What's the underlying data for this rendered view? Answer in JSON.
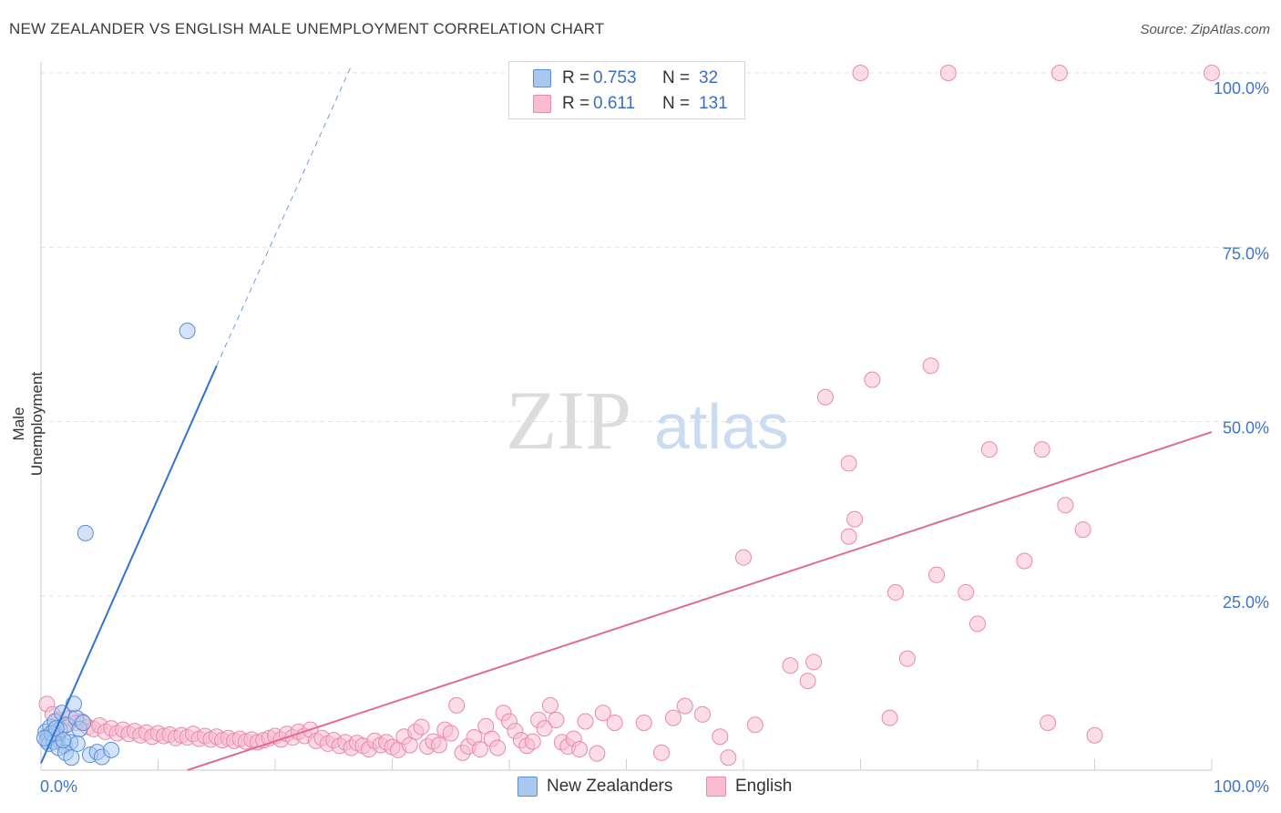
{
  "title": "NEW ZEALANDER VS ENGLISH MALE UNEMPLOYMENT CORRELATION CHART",
  "source": "Source: ZipAtlas.com",
  "watermark": {
    "zip": "ZIP",
    "atlas": "atlas"
  },
  "legend": {
    "r_label": "R =",
    "n_label": "N =",
    "series": [
      {
        "name": "New Zealanders",
        "r": "0.753",
        "n": "32",
        "color": "#a9c8f0",
        "stroke": "#5a8fd8"
      },
      {
        "name": "English",
        "r": "0.611",
        "n": "131",
        "color": "#f9bcd0",
        "stroke": "#e88aa8"
      }
    ]
  },
  "chart_data": {
    "type": "scatter",
    "xlabel": "",
    "ylabel": "Male Unemployment",
    "xlim": [
      0,
      100
    ],
    "ylim": [
      0,
      100
    ],
    "x_tick_labels": [
      "0.0%",
      "100.0%"
    ],
    "y_tick_labels": [
      "25.0%",
      "50.0%",
      "75.0%",
      "100.0%"
    ],
    "y_ticks": [
      25,
      50,
      75,
      100
    ],
    "grid": true,
    "series": [
      {
        "name": "New Zealanders",
        "color": "#a9c8f0",
        "stroke": "#5a8fd8",
        "line_color": "#2f74d0",
        "trend": {
          "x0": 0,
          "y0": 1,
          "x1": 15,
          "y1": 58,
          "dash_to_x": 26.5,
          "dash_to_y": 101
        },
        "points": [
          [
            0.4,
            5.5
          ],
          [
            0.6,
            4.8
          ],
          [
            0.8,
            6.2
          ],
          [
            0.5,
            4.2
          ],
          [
            1.0,
            5.0
          ],
          [
            1.2,
            7.0
          ],
          [
            1.4,
            4.5
          ],
          [
            0.7,
            3.8
          ],
          [
            1.6,
            5.8
          ],
          [
            1.8,
            8.2
          ],
          [
            2.0,
            3.5
          ],
          [
            2.2,
            6.5
          ],
          [
            1.1,
            4.1
          ],
          [
            0.9,
            5.3
          ],
          [
            1.5,
            3.2
          ],
          [
            2.5,
            4.0
          ],
          [
            3.0,
            7.5
          ],
          [
            2.8,
            9.5
          ],
          [
            3.3,
            5.9
          ],
          [
            2.1,
            2.5
          ],
          [
            2.6,
            1.8
          ],
          [
            3.1,
            3.8
          ],
          [
            3.6,
            6.8
          ],
          [
            4.2,
            2.2
          ],
          [
            4.8,
            2.6
          ],
          [
            5.2,
            1.9
          ],
          [
            6.0,
            2.9
          ],
          [
            3.8,
            34
          ],
          [
            12.5,
            63
          ],
          [
            1.3,
            6.0
          ],
          [
            0.3,
            4.6
          ],
          [
            1.9,
            4.3
          ]
        ]
      },
      {
        "name": "English",
        "color": "#f9bcd0",
        "stroke": "#e88aa8",
        "line_color": "#e26b93",
        "trend": {
          "x0": 12.5,
          "y0": 0,
          "x1": 100,
          "y1": 48.5
        },
        "points": [
          [
            0.5,
            9.5
          ],
          [
            1.0,
            8.0
          ],
          [
            1.5,
            7.2
          ],
          [
            2.0,
            6.5
          ],
          [
            2.5,
            7.5
          ],
          [
            3.0,
            6.8
          ],
          [
            3.5,
            7.0
          ],
          [
            4.0,
            6.2
          ],
          [
            4.5,
            5.9
          ],
          [
            5.0,
            6.4
          ],
          [
            5.5,
            5.5
          ],
          [
            6.0,
            6.0
          ],
          [
            6.5,
            5.3
          ],
          [
            7.0,
            5.8
          ],
          [
            7.5,
            5.2
          ],
          [
            8.0,
            5.6
          ],
          [
            8.5,
            5.0
          ],
          [
            9.0,
            5.4
          ],
          [
            9.5,
            4.8
          ],
          [
            10.0,
            5.3
          ],
          [
            10.5,
            4.9
          ],
          [
            11.0,
            5.1
          ],
          [
            11.5,
            4.6
          ],
          [
            12.0,
            5.0
          ],
          [
            12.5,
            4.7
          ],
          [
            13.0,
            5.2
          ],
          [
            13.5,
            4.5
          ],
          [
            14.0,
            4.9
          ],
          [
            14.5,
            4.4
          ],
          [
            15.0,
            4.8
          ],
          [
            15.5,
            4.3
          ],
          [
            16.0,
            4.6
          ],
          [
            16.5,
            4.2
          ],
          [
            17.0,
            4.5
          ],
          [
            17.5,
            4.1
          ],
          [
            18.0,
            4.4
          ],
          [
            18.5,
            4.0
          ],
          [
            19.0,
            4.3
          ],
          [
            19.5,
            4.6
          ],
          [
            20.0,
            4.9
          ],
          [
            20.5,
            4.4
          ],
          [
            21.0,
            5.2
          ],
          [
            21.5,
            4.7
          ],
          [
            22.0,
            5.5
          ],
          [
            22.5,
            4.9
          ],
          [
            23.0,
            5.8
          ],
          [
            23.5,
            4.2
          ],
          [
            24.0,
            4.6
          ],
          [
            24.5,
            3.8
          ],
          [
            25.0,
            4.3
          ],
          [
            25.5,
            3.5
          ],
          [
            26.0,
            4.0
          ],
          [
            26.5,
            3.2
          ],
          [
            27.0,
            3.9
          ],
          [
            27.5,
            3.5
          ],
          [
            28.0,
            3.0
          ],
          [
            28.5,
            4.2
          ],
          [
            29.0,
            3.6
          ],
          [
            29.5,
            4.0
          ],
          [
            30.0,
            3.3
          ],
          [
            30.5,
            2.9
          ],
          [
            31.0,
            4.8
          ],
          [
            31.5,
            3.6
          ],
          [
            32.0,
            5.5
          ],
          [
            32.5,
            6.2
          ],
          [
            33.0,
            3.4
          ],
          [
            33.5,
            4.1
          ],
          [
            34.0,
            3.6
          ],
          [
            34.5,
            5.8
          ],
          [
            35.0,
            5.3
          ],
          [
            35.5,
            9.3
          ],
          [
            36.0,
            2.5
          ],
          [
            36.5,
            3.4
          ],
          [
            37.0,
            4.7
          ],
          [
            37.5,
            3.0
          ],
          [
            38.0,
            6.3
          ],
          [
            38.5,
            4.5
          ],
          [
            39.0,
            3.2
          ],
          [
            39.5,
            8.2
          ],
          [
            40.0,
            7.0
          ],
          [
            40.5,
            5.6
          ],
          [
            41.0,
            4.3
          ],
          [
            41.5,
            3.5
          ],
          [
            42.0,
            4.1
          ],
          [
            42.5,
            7.2
          ],
          [
            43.0,
            6.0
          ],
          [
            43.5,
            9.3
          ],
          [
            44.0,
            7.2
          ],
          [
            44.5,
            4.0
          ],
          [
            45.0,
            3.4
          ],
          [
            45.5,
            4.5
          ],
          [
            46.0,
            3.0
          ],
          [
            46.5,
            7.0
          ],
          [
            47.5,
            2.4
          ],
          [
            48.0,
            8.2
          ],
          [
            49.0,
            6.8
          ],
          [
            53.0,
            2.5
          ],
          [
            54.0,
            7.5
          ],
          [
            55.0,
            9.2
          ],
          [
            58.0,
            4.8
          ],
          [
            58.7,
            1.8
          ],
          [
            60.0,
            30.5
          ],
          [
            64.0,
            15.0
          ],
          [
            65.5,
            12.8
          ],
          [
            66.0,
            15.5
          ],
          [
            67.0,
            53.5
          ],
          [
            69.0,
            44
          ],
          [
            69.5,
            36
          ],
          [
            69.0,
            33.5
          ],
          [
            71.0,
            56
          ],
          [
            73.0,
            25.5
          ],
          [
            74.0,
            16
          ],
          [
            76.0,
            58
          ],
          [
            76.5,
            28
          ],
          [
            79.0,
            25.5
          ],
          [
            80.0,
            21
          ],
          [
            81.0,
            46
          ],
          [
            84.0,
            30
          ],
          [
            85.5,
            46
          ],
          [
            87.5,
            38
          ],
          [
            89.0,
            34.5
          ],
          [
            90.0,
            5.0
          ],
          [
            70.0,
            100
          ],
          [
            77.5,
            100
          ],
          [
            87.0,
            100
          ],
          [
            100.0,
            100
          ],
          [
            72.5,
            7.5
          ],
          [
            86.0,
            6.8
          ],
          [
            51.5,
            6.8
          ],
          [
            56.5,
            8.0
          ],
          [
            61.0,
            6.5
          ]
        ]
      }
    ]
  }
}
